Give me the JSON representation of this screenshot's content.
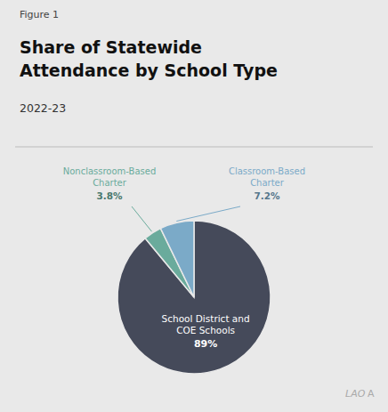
{
  "chart_data": {
    "type": "pie",
    "title": "Share of Statewide\nAttendance by School Type",
    "subtitle": "2022-23",
    "annotations": [
      "Figure 1",
      "LAO",
      "A"
    ],
    "categories": [
      "School District and\nCOE Schools",
      "Nonclassroom-Based\nCharter",
      "Classroom-Based\nCharter"
    ],
    "values": [
      89.0,
      3.8,
      7.2
    ],
    "value_labels": [
      "89%",
      "3.8%",
      "7.2%"
    ],
    "colors": [
      "#454a5a",
      "#6aab9c",
      "#7baac8"
    ],
    "data_labels": true
  }
}
